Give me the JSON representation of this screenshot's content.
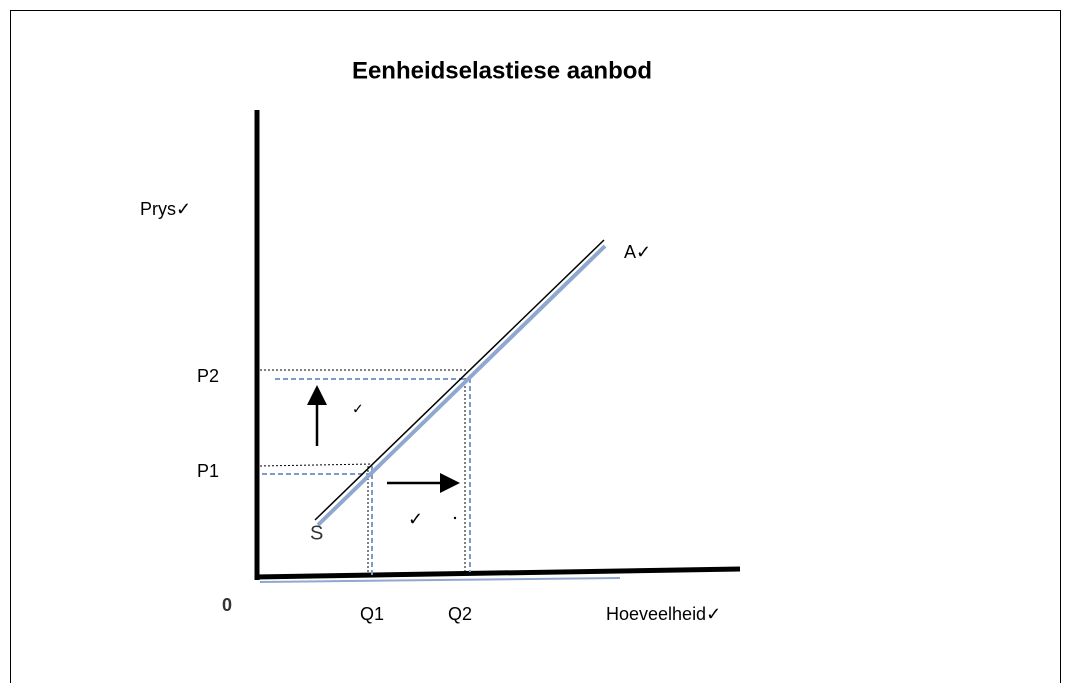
{
  "title": "Eenheidselastiese aanbod",
  "axes": {
    "y_label": "Prys✓",
    "x_label": "Hoeveelheid✓",
    "origin": "0"
  },
  "prices": [
    "P1",
    "P2"
  ],
  "quantities": [
    "Q1",
    "Q2"
  ],
  "curve": {
    "start_label": "S",
    "end_label": "A✓"
  },
  "marks": [
    "✓",
    "✓"
  ]
}
